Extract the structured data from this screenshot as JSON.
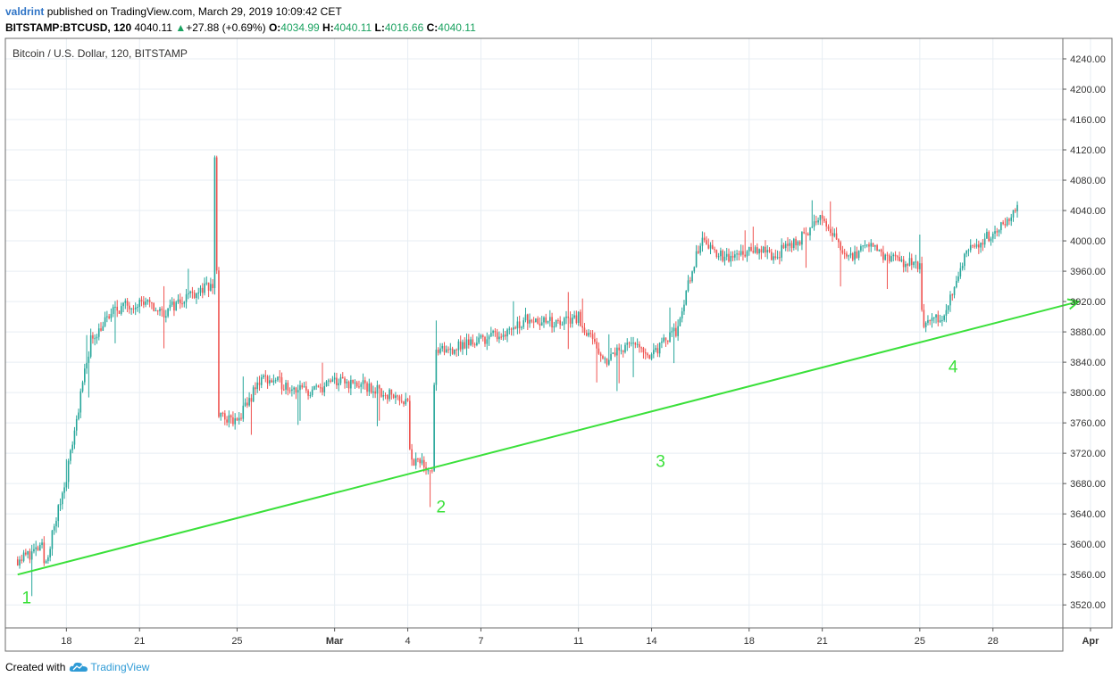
{
  "header": {
    "user": "valdrint",
    "published_text": "published on TradingView.com, March 29, 2019 10:09:42 CET",
    "symbol": "BITSTAMP:BTCUSD, 120",
    "last_price": "4040.11",
    "change_arrow": "▲",
    "change": "+27.88 (+0.69%)",
    "o_label": "O:",
    "o_value": "4034.99",
    "h_label": "H:",
    "h_value": "4040.11",
    "l_label": "L:",
    "l_value": "4016.66",
    "c_label": "C:",
    "c_value": "4040.11"
  },
  "footer": {
    "created_with": "Created with",
    "brand": "TradingView"
  },
  "colors": {
    "up": "#26a69a",
    "down": "#ef5350",
    "trendline": "#3ae03a",
    "grid": "#e7eef3",
    "text_green": "#1aa260"
  },
  "chart_data": {
    "type": "candlestick",
    "title": "Bitcoin / U.S. Dollar, 120, BITSTAMP",
    "ylim": [
      3495,
      4262
    ],
    "y_ticks": [
      3520,
      3560,
      3600,
      3640,
      3680,
      3720,
      3760,
      3800,
      3840,
      3880,
      3920,
      3960,
      4000,
      4040,
      4080,
      4120,
      4160,
      4200,
      4240
    ],
    "x_ticks": [
      "18",
      "21",
      "25",
      "Mar",
      "4",
      "7",
      "11",
      "14",
      "18",
      "21",
      "25",
      "28",
      "Apr"
    ],
    "grid": true,
    "price_path": [
      [
        "2019-02-16",
        3580
      ],
      [
        "2019-02-17",
        3595
      ],
      [
        "2019-02-17",
        3570
      ],
      [
        "2019-02-18",
        3690
      ],
      [
        "2019-02-19",
        3870
      ],
      [
        "2019-02-20",
        3910
      ],
      [
        "2019-02-21",
        3920
      ],
      [
        "2019-02-22",
        3905
      ],
      [
        "2019-02-23",
        3930
      ],
      [
        "2019-02-24",
        3940
      ],
      [
        "2019-02-24",
        4165
      ],
      [
        "2019-02-24",
        3770
      ],
      [
        "2019-02-25",
        3760
      ],
      [
        "2019-02-26",
        3820
      ],
      [
        "2019-02-27",
        3810
      ],
      [
        "2019-02-28",
        3800
      ],
      [
        "2019-03-01",
        3815
      ],
      [
        "2019-03-02",
        3810
      ],
      [
        "2019-03-03",
        3800
      ],
      [
        "2019-03-04",
        3790
      ],
      [
        "2019-03-04",
        3710
      ],
      [
        "2019-03-05",
        3700
      ],
      [
        "2019-03-05",
        3850
      ],
      [
        "2019-03-06",
        3860
      ],
      [
        "2019-03-07",
        3870
      ],
      [
        "2019-03-08",
        3880
      ],
      [
        "2019-03-09",
        3900
      ],
      [
        "2019-03-10",
        3890
      ],
      [
        "2019-03-11",
        3900
      ],
      [
        "2019-03-12",
        3840
      ],
      [
        "2019-03-13",
        3865
      ],
      [
        "2019-03-14",
        3850
      ],
      [
        "2019-03-15",
        3880
      ],
      [
        "2019-03-16",
        4000
      ],
      [
        "2019-03-17",
        3975
      ],
      [
        "2019-03-18",
        3990
      ],
      [
        "2019-03-19",
        3980
      ],
      [
        "2019-03-20",
        4000
      ],
      [
        "2019-03-21",
        4030
      ],
      [
        "2019-03-22",
        3980
      ],
      [
        "2019-03-23",
        3990
      ],
      [
        "2019-03-24",
        3975
      ],
      [
        "2019-03-25",
        3970
      ],
      [
        "2019-03-25",
        3890
      ],
      [
        "2019-03-26",
        3900
      ],
      [
        "2019-03-27",
        3990
      ],
      [
        "2019-03-28",
        4010
      ],
      [
        "2019-03-29",
        4040
      ]
    ],
    "trendline": {
      "from": [
        "2019-02-16",
        3560
      ],
      "to": [
        "2019-03-31",
        3920
      ]
    },
    "annotations": [
      {
        "text": "1",
        "x": "2019-02-16",
        "y": 3530
      },
      {
        "text": "2",
        "x": "2019-03-05",
        "y": 3650
      },
      {
        "text": "3",
        "x": "2019-03-14",
        "y": 3710
      },
      {
        "text": "4",
        "x": "2019-03-26",
        "y": 3835
      }
    ]
  }
}
